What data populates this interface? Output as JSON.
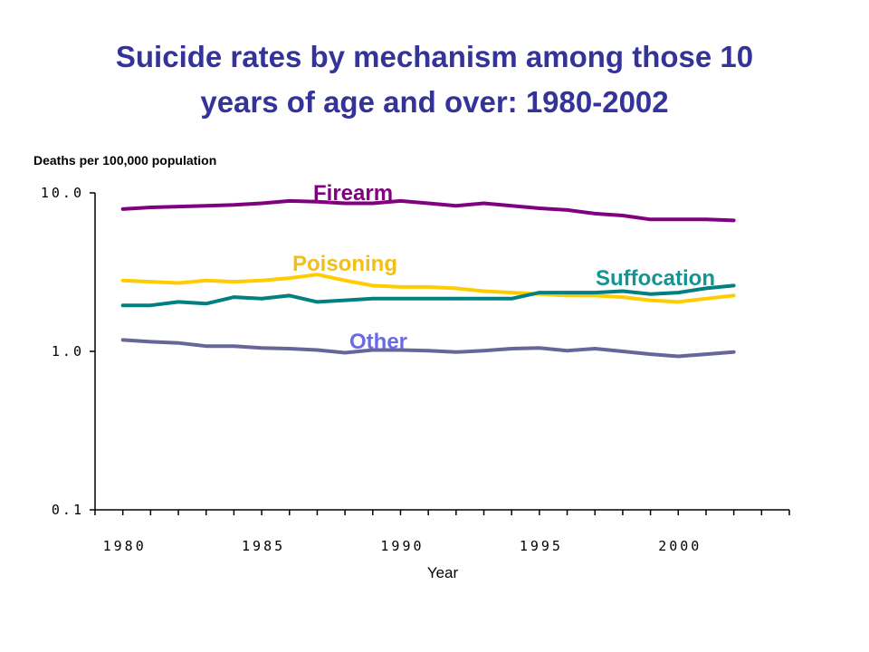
{
  "chart_data": {
    "type": "line",
    "title_lines": [
      "Suicide rates by mechanism among those 10",
      "years of age and over: 1980-2002"
    ],
    "ylabel": "Deaths per 100,000 population",
    "xlabel": "Year",
    "y_scale": "log",
    "ylim": [
      0.1,
      10.0
    ],
    "xlim": [
      1979,
      2004
    ],
    "y_ticks": [
      {
        "value": 10.0,
        "label": "10.0"
      },
      {
        "value": 1.0,
        "label": "1.0"
      },
      {
        "value": 0.1,
        "label": "0.1"
      }
    ],
    "x_ticks": [
      {
        "value": 1980,
        "label": "1980"
      },
      {
        "value": 1985,
        "label": "1985"
      },
      {
        "value": 1990,
        "label": "1990"
      },
      {
        "value": 1995,
        "label": "1995"
      },
      {
        "value": 2000,
        "label": "2000"
      }
    ],
    "grid": false,
    "x": [
      1980,
      1981,
      1982,
      1983,
      1984,
      1985,
      1986,
      1987,
      1988,
      1989,
      1990,
      1991,
      1992,
      1993,
      1994,
      1995,
      1996,
      1997,
      1998,
      1999,
      2000,
      2001,
      2002
    ],
    "series": [
      {
        "name": "Firearm",
        "color": "#800080",
        "values": [
          7.9,
          8.1,
          8.2,
          8.3,
          8.4,
          8.6,
          8.9,
          8.8,
          8.6,
          8.6,
          8.9,
          8.6,
          8.3,
          8.6,
          8.3,
          8.0,
          7.8,
          7.4,
          7.2,
          6.8,
          6.8,
          6.8,
          6.7
        ]
      },
      {
        "name": "Poisoning",
        "color": "#FFCC00",
        "values": [
          2.8,
          2.75,
          2.7,
          2.8,
          2.75,
          2.8,
          2.9,
          3.05,
          2.8,
          2.6,
          2.55,
          2.55,
          2.5,
          2.4,
          2.35,
          2.3,
          2.25,
          2.25,
          2.2,
          2.1,
          2.05,
          2.15,
          2.25
        ]
      },
      {
        "name": "Suffocation",
        "color": "#008080",
        "values": [
          1.95,
          1.95,
          2.05,
          2.0,
          2.2,
          2.15,
          2.25,
          2.05,
          2.1,
          2.15,
          2.15,
          2.15,
          2.15,
          2.15,
          2.15,
          2.35,
          2.35,
          2.35,
          2.4,
          2.3,
          2.35,
          2.5,
          2.6
        ]
      },
      {
        "name": "Other",
        "color": "#666699",
        "values": [
          1.18,
          1.15,
          1.13,
          1.08,
          1.08,
          1.05,
          1.04,
          1.02,
          0.98,
          1.02,
          1.02,
          1.01,
          0.99,
          1.01,
          1.04,
          1.05,
          1.01,
          1.04,
          1.0,
          0.96,
          0.93,
          0.96,
          0.99
        ]
      }
    ],
    "series_labels": [
      {
        "text": "Firearm",
        "color": "#800080"
      },
      {
        "text": "Poisoning",
        "color": "#F2BE1A"
      },
      {
        "text": "Suffocation",
        "color": "#169494"
      },
      {
        "text": "Other",
        "color": "#6A6AE6"
      }
    ]
  }
}
